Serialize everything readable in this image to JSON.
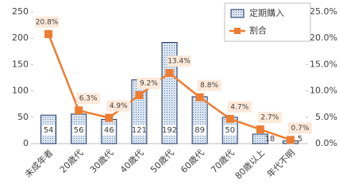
{
  "chart_data": {
    "type": "bar",
    "categories": [
      "未成年者",
      "20歳代",
      "30歳代",
      "40歳代",
      "50歳代",
      "60歳代",
      "70歳代",
      "80歳以上",
      "年代不明"
    ],
    "series": [
      {
        "name": "定期購入",
        "type": "bar",
        "color": "#1f3864",
        "values": [
          54,
          56,
          46,
          121,
          192,
          89,
          50,
          18,
          5
        ]
      },
      {
        "name": "割合",
        "type": "line",
        "axis": "y2",
        "color": "#ed7d31",
        "values": [
          20.8,
          6.3,
          4.9,
          9.2,
          13.4,
          8.8,
          4.7,
          2.7,
          0.7
        ],
        "value_labels": [
          "20.8%",
          "6.3%",
          "4.9%",
          "9.2%",
          "13.4%",
          "8.8%",
          "4.7%",
          "2.7%",
          "0.7%"
        ]
      }
    ],
    "ylim": [
      0,
      250
    ],
    "yticks": [
      0,
      50,
      100,
      150,
      200,
      250
    ],
    "y2lim": [
      0,
      25
    ],
    "y2ticks": [
      {
        "value": 0,
        "label": "0.0%"
      },
      {
        "value": 5,
        "label": "5.0%"
      },
      {
        "value": 10,
        "label": "10.0%"
      },
      {
        "value": 15,
        "label": "15.0%"
      },
      {
        "value": 20,
        "label": "20.0%"
      },
      {
        "value": 25,
        "label": "25.0%"
      }
    ],
    "legend": "top-right"
  }
}
